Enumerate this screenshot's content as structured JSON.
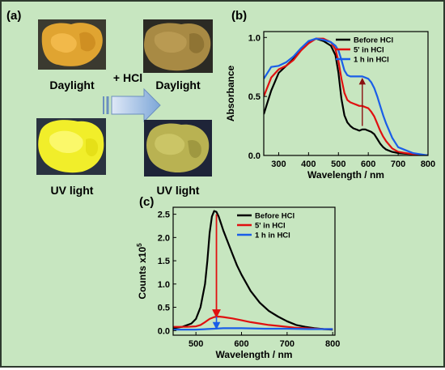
{
  "panel_labels": {
    "a": "(a)",
    "b": "(b)",
    "c": "(c)"
  },
  "panel_a": {
    "row1_label_left": "Daylight",
    "row1_label_right": "Daylight",
    "row2_label_left": "UV light",
    "row2_label_right": "UV light",
    "reagent": "+ HCl"
  },
  "colors": {
    "before": "#000000",
    "five_min": "#e01010",
    "one_hour": "#1a5ee8",
    "background": "#c7e6c0"
  },
  "chart_data": [
    {
      "type": "line",
      "panel": "(b)",
      "xlabel": "Wavelength / nm",
      "ylabel": "Absorbance",
      "xlim": [
        250,
        800
      ],
      "ylim": [
        0,
        1.05
      ],
      "xticks": [
        "300",
        "400",
        "500",
        "600",
        "700",
        "800"
      ],
      "yticks": [
        "0.0",
        "0.5",
        "1.0"
      ],
      "legend": "top-right",
      "series": [
        {
          "name": "Before HCl",
          "color": "#000000",
          "x": [
            250,
            275,
            300,
            325,
            350,
            375,
            400,
            425,
            450,
            475,
            490,
            500,
            510,
            520,
            530,
            540,
            550,
            560,
            570,
            580,
            590,
            600,
            610,
            620,
            630,
            640,
            650,
            660,
            680,
            700,
            750,
            800
          ],
          "y": [
            0.35,
            0.55,
            0.7,
            0.76,
            0.82,
            0.9,
            0.96,
            0.99,
            0.97,
            0.93,
            0.85,
            0.7,
            0.48,
            0.34,
            0.28,
            0.25,
            0.23,
            0.22,
            0.21,
            0.22,
            0.22,
            0.21,
            0.2,
            0.18,
            0.14,
            0.1,
            0.07,
            0.05,
            0.03,
            0.02,
            0.01,
            0.0
          ]
        },
        {
          "name": "5' in HCl",
          "color": "#e01010",
          "x": [
            250,
            275,
            300,
            325,
            350,
            375,
            400,
            425,
            450,
            475,
            490,
            500,
            510,
            520,
            530,
            540,
            550,
            560,
            570,
            580,
            590,
            600,
            610,
            620,
            630,
            640,
            650,
            660,
            680,
            700,
            750,
            800
          ],
          "y": [
            0.5,
            0.66,
            0.73,
            0.76,
            0.81,
            0.89,
            0.95,
            0.99,
            0.99,
            0.96,
            0.9,
            0.8,
            0.65,
            0.53,
            0.47,
            0.45,
            0.44,
            0.43,
            0.42,
            0.42,
            0.41,
            0.4,
            0.37,
            0.33,
            0.27,
            0.21,
            0.16,
            0.12,
            0.06,
            0.03,
            0.01,
            0.0
          ]
        },
        {
          "name": "1 h in HCl",
          "color": "#1a5ee8",
          "x": [
            250,
            275,
            300,
            325,
            350,
            375,
            400,
            425,
            450,
            475,
            490,
            500,
            510,
            520,
            530,
            540,
            550,
            560,
            570,
            580,
            590,
            600,
            610,
            620,
            630,
            640,
            650,
            660,
            680,
            700,
            750,
            800
          ],
          "y": [
            0.65,
            0.75,
            0.76,
            0.79,
            0.84,
            0.91,
            0.97,
            0.99,
            0.98,
            0.96,
            0.93,
            0.89,
            0.81,
            0.72,
            0.68,
            0.67,
            0.67,
            0.67,
            0.67,
            0.67,
            0.66,
            0.65,
            0.62,
            0.57,
            0.5,
            0.42,
            0.34,
            0.27,
            0.15,
            0.07,
            0.02,
            0.0
          ]
        }
      ],
      "annotation": "arrow at 580 nm from 0.22 to 0.65"
    },
    {
      "type": "line",
      "panel": "(c)",
      "xlabel": "Wavelength / nm",
      "ylabel": "Counts x10",
      "ylabel_superscript": "5",
      "xlim": [
        450,
        805
      ],
      "ylim": [
        -0.1,
        2.65
      ],
      "xticks": [
        "500",
        "600",
        "700",
        "800"
      ],
      "yticks": [
        "0.0",
        "0.5",
        "1.0",
        "1.5",
        "2.0",
        "2.5"
      ],
      "legend": "top-right",
      "series": [
        {
          "name": "Before HCl",
          "color": "#000000",
          "x": [
            450,
            470,
            490,
            500,
            510,
            520,
            525,
            530,
            535,
            540,
            545,
            550,
            555,
            560,
            570,
            580,
            590,
            600,
            620,
            640,
            660,
            680,
            700,
            720,
            740,
            760,
            780,
            800
          ],
          "y": [
            0.05,
            0.08,
            0.15,
            0.25,
            0.5,
            1.0,
            1.5,
            2.1,
            2.45,
            2.57,
            2.55,
            2.45,
            2.3,
            2.15,
            1.9,
            1.65,
            1.4,
            1.2,
            0.85,
            0.6,
            0.42,
            0.3,
            0.2,
            0.12,
            0.08,
            0.05,
            0.03,
            0.02
          ]
        },
        {
          "name": "5' in HCl",
          "color": "#e01010",
          "x": [
            450,
            480,
            500,
            510,
            520,
            530,
            540,
            550,
            560,
            580,
            600,
            620,
            640,
            660,
            680,
            700,
            720,
            740,
            760,
            780,
            800
          ],
          "y": [
            0.08,
            0.08,
            0.09,
            0.12,
            0.18,
            0.25,
            0.29,
            0.3,
            0.29,
            0.26,
            0.22,
            0.18,
            0.15,
            0.12,
            0.1,
            0.08,
            0.06,
            0.05,
            0.04,
            0.03,
            0.03
          ]
        },
        {
          "name": "1 h in HCl",
          "color": "#1a5ee8",
          "x": [
            450,
            500,
            540,
            560,
            600,
            650,
            700,
            750,
            800
          ],
          "y": [
            0.02,
            0.02,
            0.04,
            0.05,
            0.05,
            0.04,
            0.04,
            0.03,
            0.03
          ]
        }
      ],
      "annotation": "arrow at 545 nm from 2.55 to 0.05"
    }
  ]
}
